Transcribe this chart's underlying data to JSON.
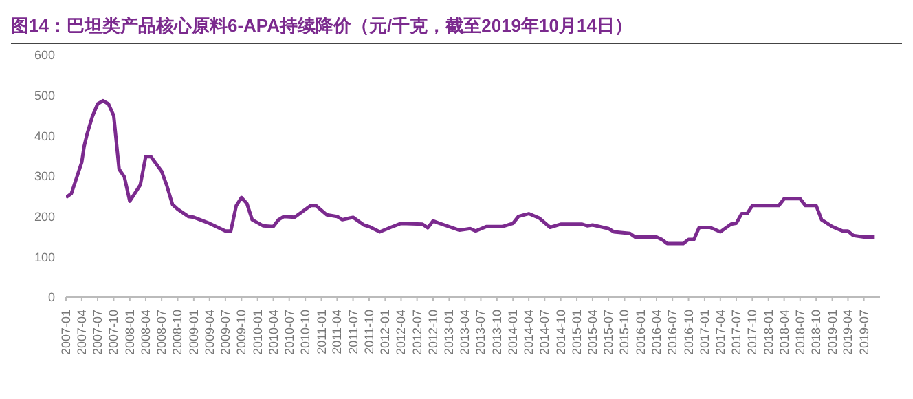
{
  "chart_data": {
    "type": "line",
    "title": "图14：巴坦类产品核心原料6-APA持续降价（元/千克，截至2019年10月14日）",
    "x": [
      "2007-01",
      "2007-02",
      "2007-04-01",
      "2007-04-15",
      "2007-05",
      "2007-06",
      "2007-07",
      "2007-08",
      "2007-09",
      "2007-10",
      "2007-11",
      "2007-12",
      "2008-01",
      "2008-03",
      "2008-04",
      "2008-05",
      "2008-07",
      "2008-08",
      "2008-09",
      "2008-10",
      "2008-12",
      "2009-01",
      "2009-04",
      "2009-07",
      "2009-08",
      "2009-09",
      "2009-10",
      "2009-11",
      "2009-12",
      "2010-02",
      "2010-04",
      "2010-05",
      "2010-06",
      "2010-08",
      "2010-11",
      "2010-12",
      "2011-02",
      "2011-04",
      "2011-05",
      "2011-07",
      "2011-09",
      "2011-10",
      "2011-12",
      "2012-02",
      "2012-04",
      "2012-08",
      "2012-09",
      "2012-10",
      "2012-11",
      "2013-03",
      "2013-05",
      "2013-06",
      "2013-08",
      "2013-11",
      "2014-01",
      "2014-02",
      "2014-04",
      "2014-06",
      "2014-08",
      "2014-10",
      "2015-02",
      "2015-03",
      "2015-04",
      "2015-07",
      "2015-08",
      "2015-11",
      "2015-12",
      "2016-04",
      "2016-05",
      "2016-06",
      "2016-09",
      "2016-10",
      "2016-11",
      "2016-12",
      "2017-02",
      "2017-04",
      "2017-06",
      "2017-07",
      "2017-08",
      "2017-09",
      "2017-10",
      "2018-03",
      "2018-04",
      "2018-07",
      "2018-08",
      "2018-10",
      "2018-11",
      "2019-01",
      "2019-03",
      "2019-04",
      "2019-05",
      "2019-07",
      "2019-09"
    ],
    "series": [
      {
        "color": "#7b2a8e",
        "values": [
          247,
          257,
          334,
          374,
          403,
          448,
          479,
          487,
          479,
          450,
          317,
          298,
          238,
          278,
          348,
          348,
          312,
          275,
          230,
          218,
          200,
          198,
          183,
          164,
          164,
          227,
          247,
          232,
          192,
          177,
          175,
          192,
          200,
          198,
          227,
          227,
          204,
          200,
          192,
          198,
          179,
          175,
          162,
          173,
          183,
          181,
          172,
          189,
          184,
          166,
          170,
          164,
          175,
          175,
          183,
          200,
          207,
          196,
          173,
          181,
          181,
          177,
          179,
          170,
          162,
          158,
          149,
          149,
          143,
          133,
          133,
          143,
          143,
          173,
          173,
          162,
          181,
          183,
          207,
          207,
          227,
          227,
          244,
          244,
          227,
          227,
          192,
          175,
          164,
          164,
          153,
          149,
          149
        ]
      }
    ],
    "xlim": [
      "2007-01",
      "2019-10"
    ],
    "xticks": [
      "2007-01",
      "2007-04",
      "2007-07",
      "2007-10",
      "2008-01",
      "2008-04",
      "2008-07",
      "2008-10",
      "2009-01",
      "2009-04",
      "2009-07",
      "2009-10",
      "2010-01",
      "2010-04",
      "2010-07",
      "2010-10",
      "2011-01",
      "2011-04",
      "2011-07",
      "2011-10",
      "2012-01",
      "2012-04",
      "2012-07",
      "2012-10",
      "2013-01",
      "2013-04",
      "2013-07",
      "2013-10",
      "2014-01",
      "2014-04",
      "2014-07",
      "2014-10",
      "2015-01",
      "2015-04",
      "2015-07",
      "2015-10",
      "2016-01",
      "2016-04",
      "2016-07",
      "2016-10",
      "2017-01",
      "2017-04",
      "2017-07",
      "2017-10",
      "2018-01",
      "2018-04",
      "2018-07",
      "2018-10",
      "2019-01",
      "2019-04",
      "2019-07"
    ],
    "ylim": [
      0,
      600
    ],
    "yticks": [
      0,
      100,
      200,
      300,
      400,
      500,
      600
    ]
  }
}
